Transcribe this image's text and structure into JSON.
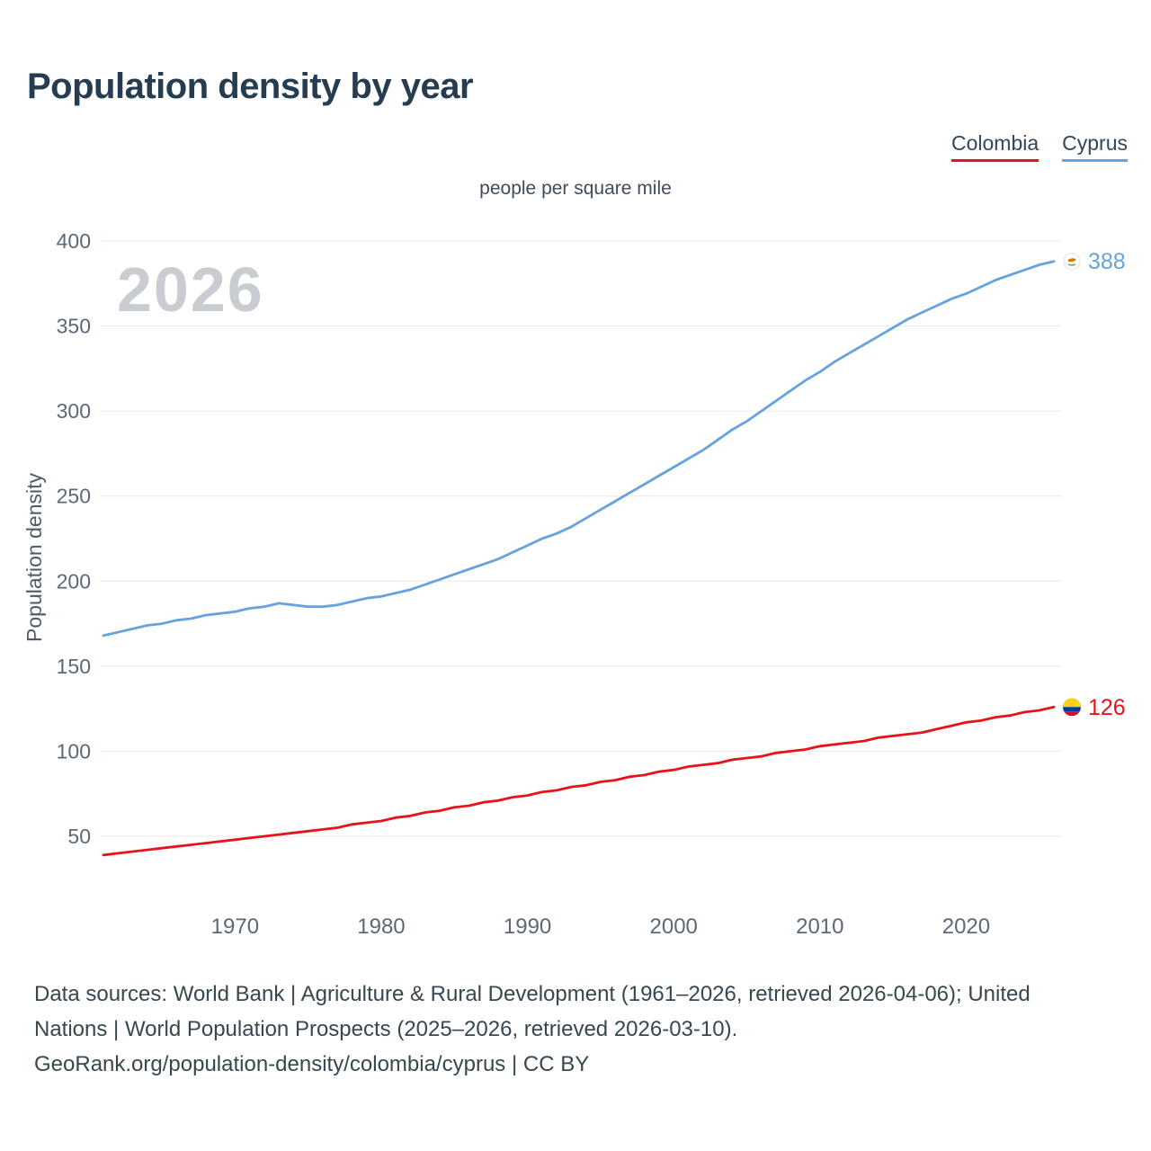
{
  "page": {
    "title": "Population density by year",
    "subtitle": "people per square mile",
    "watermark": "2026"
  },
  "legend": [
    {
      "label": "Colombia",
      "color": "#e8131a"
    },
    {
      "label": "Cyprus",
      "color": "#66a3dc"
    }
  ],
  "footer": {
    "line1": "Data sources: World Bank | Agriculture & Rural Development (1961–2026, retrieved 2026-04-06); United",
    "line2": "Nations | World Population Prospects (2025–2026, retrieved 2026-03-10).",
    "line3": "GeoRank.org/population-density/colombia/cyprus | CC BY"
  },
  "chart_data": {
    "type": "line",
    "title": "Population density by year",
    "subtitle": "people per square mile",
    "xlabel": "",
    "ylabel": "Population density",
    "xlim": [
      1961,
      2026
    ],
    "ylim": [
      30,
      410
    ],
    "x_ticks": [
      1970,
      1980,
      1990,
      2000,
      2010,
      2020
    ],
    "y_ticks": [
      50,
      100,
      150,
      200,
      250,
      300,
      350,
      400
    ],
    "grid": "horizontal",
    "legend_position": "top-right",
    "x": [
      1961,
      1962,
      1963,
      1964,
      1965,
      1966,
      1967,
      1968,
      1969,
      1970,
      1971,
      1972,
      1973,
      1974,
      1975,
      1976,
      1977,
      1978,
      1979,
      1980,
      1981,
      1982,
      1983,
      1984,
      1985,
      1986,
      1987,
      1988,
      1989,
      1990,
      1991,
      1992,
      1993,
      1994,
      1995,
      1996,
      1997,
      1998,
      1999,
      2000,
      2001,
      2002,
      2003,
      2004,
      2005,
      2006,
      2007,
      2008,
      2009,
      2010,
      2011,
      2012,
      2013,
      2014,
      2015,
      2016,
      2017,
      2018,
      2019,
      2020,
      2021,
      2022,
      2023,
      2024,
      2025,
      2026
    ],
    "series": [
      {
        "name": "Colombia",
        "color": "#e8131a",
        "end_label": "126",
        "flag_icon": "colombia-flag-icon",
        "values": [
          39,
          40,
          41,
          42,
          43,
          44,
          45,
          46,
          47,
          48,
          49,
          50,
          51,
          52,
          53,
          54,
          55,
          57,
          58,
          59,
          61,
          62,
          64,
          65,
          67,
          68,
          70,
          71,
          73,
          74,
          76,
          77,
          79,
          80,
          82,
          83,
          85,
          86,
          88,
          89,
          91,
          92,
          93,
          95,
          96,
          97,
          99,
          100,
          101,
          103,
          104,
          105,
          106,
          108,
          109,
          110,
          111,
          113,
          115,
          117,
          118,
          120,
          121,
          123,
          124,
          126
        ]
      },
      {
        "name": "Cyprus",
        "color": "#66a3dc",
        "end_label": "388",
        "flag_icon": "cyprus-flag-icon",
        "values": [
          168,
          170,
          172,
          174,
          175,
          177,
          178,
          180,
          181,
          182,
          184,
          185,
          187,
          186,
          185,
          185,
          186,
          188,
          190,
          191,
          193,
          195,
          198,
          201,
          204,
          207,
          210,
          213,
          217,
          221,
          225,
          228,
          232,
          237,
          242,
          247,
          252,
          257,
          262,
          267,
          272,
          277,
          283,
          289,
          294,
          300,
          306,
          312,
          318,
          323,
          329,
          334,
          339,
          344,
          349,
          354,
          358,
          362,
          366,
          369,
          373,
          377,
          380,
          383,
          386,
          388
        ]
      }
    ]
  }
}
